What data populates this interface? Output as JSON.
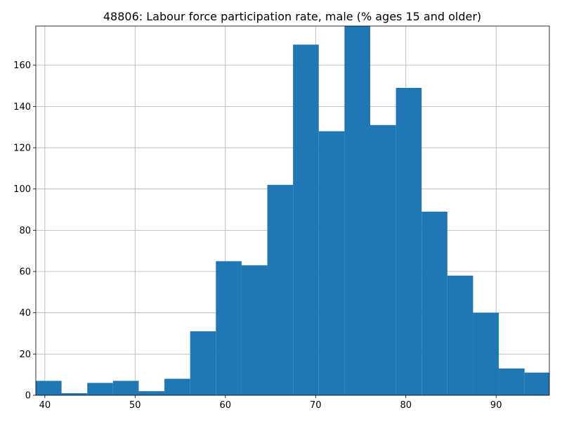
{
  "chart_data": {
    "type": "histogram",
    "title": "48806: Labour force participation rate, male (% ages 15 and older)",
    "xlabel": "",
    "ylabel": "",
    "xlim": [
      39.0,
      95.9
    ],
    "ylim": [
      0,
      179
    ],
    "grid": true,
    "bar_color": "#1f77b4",
    "bins": [
      {
        "start": 39.0,
        "end": 41.85,
        "count": 7
      },
      {
        "start": 41.85,
        "end": 44.7,
        "count": 1
      },
      {
        "start": 44.7,
        "end": 47.55,
        "count": 6
      },
      {
        "start": 47.55,
        "end": 50.4,
        "count": 7
      },
      {
        "start": 50.4,
        "end": 53.25,
        "count": 2
      },
      {
        "start": 53.25,
        "end": 56.1,
        "count": 8
      },
      {
        "start": 56.1,
        "end": 58.95,
        "count": 31
      },
      {
        "start": 58.95,
        "end": 61.8,
        "count": 65
      },
      {
        "start": 61.8,
        "end": 64.65,
        "count": 63
      },
      {
        "start": 64.65,
        "end": 67.5,
        "count": 102
      },
      {
        "start": 67.5,
        "end": 70.35,
        "count": 170
      },
      {
        "start": 70.35,
        "end": 73.2,
        "count": 128
      },
      {
        "start": 73.2,
        "end": 76.05,
        "count": 179
      },
      {
        "start": 76.05,
        "end": 78.9,
        "count": 131
      },
      {
        "start": 78.9,
        "end": 81.75,
        "count": 149
      },
      {
        "start": 81.75,
        "end": 84.6,
        "count": 89
      },
      {
        "start": 84.6,
        "end": 87.45,
        "count": 58
      },
      {
        "start": 87.45,
        "end": 90.3,
        "count": 40
      },
      {
        "start": 90.3,
        "end": 93.15,
        "count": 13
      },
      {
        "start": 93.15,
        "end": 96.0,
        "count": 11
      }
    ],
    "x_ticks": [
      40,
      50,
      60,
      70,
      80,
      90
    ],
    "x_tick_labels": [
      "40",
      "50",
      "60",
      "70",
      "80",
      "90"
    ],
    "y_ticks": [
      0,
      20,
      40,
      60,
      80,
      100,
      120,
      140,
      160
    ],
    "y_tick_labels": [
      "0",
      "20",
      "40",
      "60",
      "80",
      "100",
      "120",
      "140",
      "160"
    ]
  }
}
